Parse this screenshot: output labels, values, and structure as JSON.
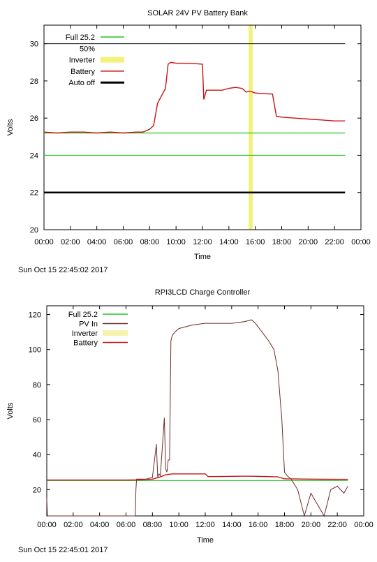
{
  "charts": [
    {
      "title": "SOLAR 24V PV Battery Bank",
      "timestamp": "Sun Oct 15 22:45:02 2017",
      "chart_data": {
        "type": "line",
        "title": "SOLAR 24V PV Battery Bank",
        "xlabel": "Time",
        "ylabel": "Volts",
        "xlim": [
          0,
          24
        ],
        "ylim": [
          20,
          31
        ],
        "x_tick_labels": [
          "00:00",
          "02:00",
          "04:00",
          "06:00",
          "08:00",
          "10:00",
          "12:00",
          "14:00",
          "16:00",
          "18:00",
          "20:00",
          "22:00",
          "00:00"
        ],
        "y_ticks": [
          20,
          22,
          24,
          26,
          28,
          30
        ],
        "legend_position": "top-left",
        "series": [
          {
            "name": "Full 25.2",
            "color": "#22c322",
            "kind": "hline",
            "x": [
              0,
              22.8
            ],
            "y": [
              25.2,
              25.2
            ]
          },
          {
            "name": "50%",
            "color": "#22c322",
            "kind": "hline",
            "x": [
              0,
              22.8
            ],
            "y": [
              24.0,
              24.0
            ]
          },
          {
            "name": "Inverter",
            "color": "#f2f27a",
            "kind": "vband",
            "x": [
              15.5,
              15.8
            ]
          },
          {
            "name": "Battery",
            "color": "#c81414",
            "kind": "line",
            "x": [
              0,
              1,
              2,
              3,
              4,
              5,
              6,
              7,
              7.5,
              8,
              8.3,
              8.6,
              8.9,
              9.2,
              9.4,
              9.6,
              10,
              11,
              12,
              12.1,
              12.3,
              13,
              13.5,
              14,
              14.5,
              15,
              15.3,
              15.6,
              16,
              17,
              17.3,
              17.6,
              18,
              19,
              20,
              21,
              22,
              22.8
            ],
            "y": [
              25.25,
              25.2,
              25.25,
              25.25,
              25.2,
              25.25,
              25.2,
              25.25,
              25.25,
              25.4,
              25.6,
              26.8,
              27.2,
              27.6,
              28.9,
              29.0,
              28.95,
              28.95,
              28.9,
              27.0,
              27.5,
              27.5,
              27.5,
              27.6,
              27.65,
              27.6,
              27.4,
              27.45,
              27.35,
              27.3,
              27.3,
              26.1,
              26.05,
              26.0,
              25.95,
              25.9,
              25.85,
              25.85
            ]
          },
          {
            "name": "Auto off",
            "color": "#000000",
            "kind": "hline",
            "x": [
              0,
              22.8
            ],
            "y": [
              22.0,
              22.0
            ]
          }
        ],
        "extra_lines": [
          {
            "color": "#000000",
            "x": [
              0,
              22.8
            ],
            "y": [
              30,
              30
            ]
          }
        ]
      }
    },
    {
      "title": "RPI3LCD Charge Controller",
      "timestamp": "Sun Oct 15 22:45:01 2017",
      "chart_data": {
        "type": "line",
        "title": "RPI3LCD Charge Controller",
        "xlabel": "Time",
        "ylabel": "Volts",
        "xlim": [
          0,
          24
        ],
        "ylim": [
          5,
          125
        ],
        "x_tick_labels": [
          "00:00",
          "02:00",
          "04:00",
          "06:00",
          "08:00",
          "10:00",
          "12:00",
          "14:00",
          "16:00",
          "18:00",
          "20:00",
          "22:00",
          "00:00"
        ],
        "y_ticks": [
          20,
          40,
          60,
          80,
          100,
          120
        ],
        "legend_position": "top-left",
        "series": [
          {
            "name": "Full 25.2",
            "color": "#22c322",
            "kind": "hline",
            "x": [
              0,
              22.8
            ],
            "y": [
              25.2,
              25.2
            ]
          },
          {
            "name": "PV In",
            "color": "#6e2a2a",
            "kind": "line",
            "x": [
              0,
              0.05,
              0.1,
              6.7,
              6.75,
              6.8,
              7.0,
              7.5,
              8.0,
              8.3,
              8.4,
              8.5,
              8.6,
              8.9,
              9.0,
              9.1,
              9.2,
              9.3,
              9.4,
              9.5,
              9.7,
              10,
              11,
              12,
              13,
              14,
              15,
              15.5,
              15.8,
              16.3,
              16.8,
              17.2,
              17.5,
              17.8,
              18.0,
              18.2,
              18.5,
              19.0,
              19.5,
              20,
              21,
              21.5,
              22,
              22.5,
              22.8
            ],
            "y": [
              15,
              5,
              5,
              5,
              20,
              26,
              26,
              26,
              27,
              46,
              27,
              29,
              28,
              61,
              32,
              30,
              37,
              37,
              105,
              108,
              110,
              112,
              114,
              115,
              115,
              115,
              116,
              117,
              115,
              110,
              105,
              100,
              88,
              60,
              30,
              28,
              26,
              20,
              5,
              18,
              5,
              20,
              22,
              18,
              22
            ]
          },
          {
            "name": "Inverter",
            "color": "#f4f4b0",
            "kind": "legend-only"
          },
          {
            "name": "Battery",
            "color": "#c81414",
            "kind": "line",
            "x": [
              0,
              2,
              4,
              6,
              7,
              8,
              8.5,
              9,
              9.5,
              10,
              11,
              12,
              12.2,
              13,
              14,
              15,
              16,
              17,
              17.5,
              18,
              19,
              20,
              21,
              22,
              22.8
            ],
            "y": [
              25.5,
              25.5,
              25.5,
              25.5,
              25.6,
              26.0,
              27.0,
              28.5,
              29.0,
              29.0,
              29.0,
              29.0,
              27.5,
              27.5,
              27.6,
              27.7,
              27.6,
              27.4,
              27.3,
              26.2,
              26.1,
              26.0,
              25.95,
              25.9,
              25.9
            ]
          }
        ]
      }
    }
  ]
}
